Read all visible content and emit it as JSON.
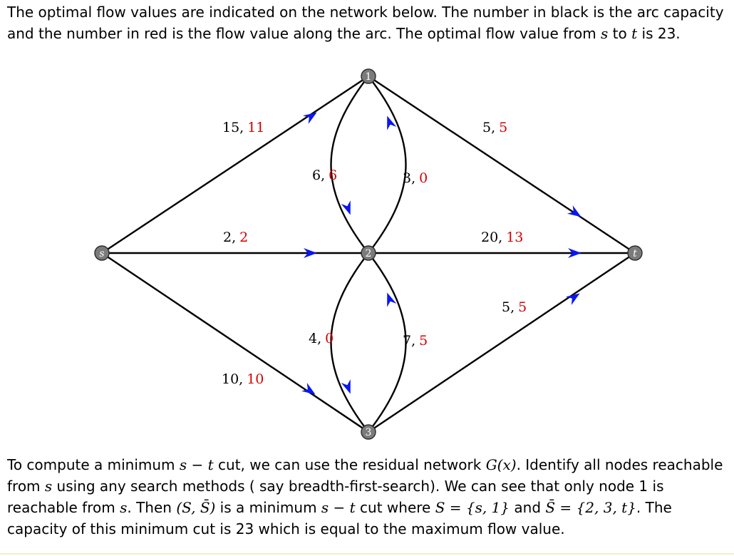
{
  "intro": {
    "p1": "The optimal flow values are indicated on the network below. The number in black is the arc capacity and the number in red is the flow value along the arc. The optimal flow value from ",
    "s": "s",
    "p2": " to ",
    "t": "t",
    "p3": " is 23."
  },
  "network": {
    "nodes": [
      {
        "id": "s",
        "label": "s"
      },
      {
        "id": "1",
        "label": "1"
      },
      {
        "id": "2",
        "label": "2"
      },
      {
        "id": "3",
        "label": "3"
      },
      {
        "id": "t",
        "label": "t"
      }
    ],
    "arcs": [
      {
        "from": "s",
        "to": "1",
        "capacity": "15,",
        "flow": "11"
      },
      {
        "from": "s",
        "to": "2",
        "capacity": "2,",
        "flow": "2"
      },
      {
        "from": "s",
        "to": "3",
        "capacity": "10,",
        "flow": "10"
      },
      {
        "from": "1",
        "to": "2",
        "capacity": "6,",
        "flow": "6"
      },
      {
        "from": "2",
        "to": "1",
        "capacity": "3,",
        "flow": "0"
      },
      {
        "from": "2",
        "to": "3",
        "capacity": "4,",
        "flow": "0"
      },
      {
        "from": "3",
        "to": "2",
        "capacity": "7,",
        "flow": "5"
      },
      {
        "from": "1",
        "to": "t",
        "capacity": "5,",
        "flow": "5"
      },
      {
        "from": "2",
        "to": "t",
        "capacity": "20,",
        "flow": "13"
      },
      {
        "from": "3",
        "to": "t",
        "capacity": "5,",
        "flow": "5"
      }
    ],
    "colors": {
      "capacity": "#000000",
      "flow": "#d40000",
      "arrow": "#0a17f0",
      "node": "#7b7b7b"
    }
  },
  "outro": {
    "a1": "To compute a minimum ",
    "m1": "s − t",
    "a2": " cut, we can use the residual network ",
    "m2": "G(x)",
    "a3": ". Identify all nodes reachable from ",
    "m3": "s",
    "a4": " using any search methods ( say breadth-first-search). We can see that only node 1 is reachable from ",
    "m4": "s",
    "a5": ". Then ",
    "m5": "(S, S̄)",
    "a6": " is a minimum ",
    "m6": "s − t",
    "a7": " cut where ",
    "m7": "S = {s, 1}",
    "a8": " and ",
    "m8": "S̄ = {2, 3, t}",
    "a9": ". The capacity of this minimum cut is 23 which is equal to the maximum flow value."
  }
}
